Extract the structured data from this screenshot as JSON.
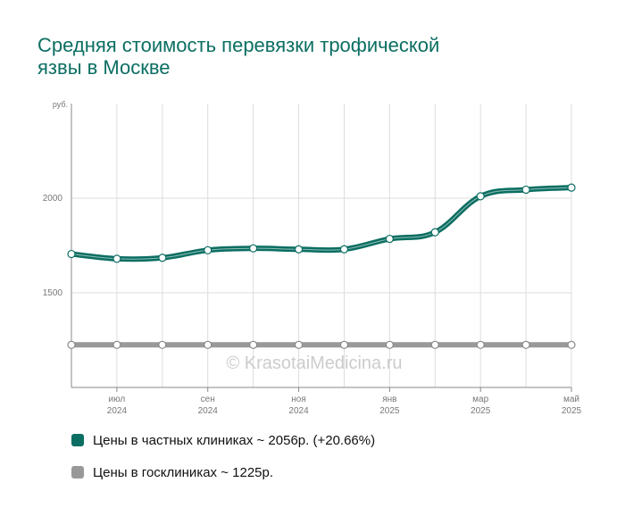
{
  "title": "Средняя стоимость перевязки трофической\nязвы в Москве",
  "watermark": "© KrasotaiMedicina.ru",
  "chart_data": {
    "type": "line",
    "ylabel": "руб.",
    "ylim": [
      1000,
      2500
    ],
    "yticks": [
      1500,
      2000
    ],
    "x": [
      "2024-06",
      "2024-07",
      "2024-08",
      "2024-09",
      "2024-10",
      "2024-11",
      "2024-12",
      "2025-01",
      "2025-02",
      "2025-03",
      "2025-04",
      "2025-05"
    ],
    "xtick_labels": [
      {
        "month": "июл",
        "year": "2024"
      },
      {
        "month": "сен",
        "year": "2024"
      },
      {
        "month": "ноя",
        "year": "2024"
      },
      {
        "month": "янв",
        "year": "2025"
      },
      {
        "month": "мар",
        "year": "2025"
      },
      {
        "month": "май",
        "year": "2025"
      }
    ],
    "xtick_indices": [
      1,
      3,
      5,
      7,
      9,
      11
    ],
    "grid": true,
    "legend_position": "bottom",
    "series": [
      {
        "name": "Цены в частных клиниках ~ 2056р. (+20.66%)",
        "color": "#0b6e62",
        "values": [
          1705,
          1680,
          1685,
          1725,
          1735,
          1730,
          1730,
          1785,
          1820,
          2010,
          2045,
          2056
        ]
      },
      {
        "name": "Цены в госклиниках ~ 1225р.",
        "color": "#999999",
        "values": [
          1225,
          1225,
          1225,
          1225,
          1225,
          1225,
          1225,
          1225,
          1225,
          1225,
          1225,
          1225
        ]
      }
    ]
  }
}
